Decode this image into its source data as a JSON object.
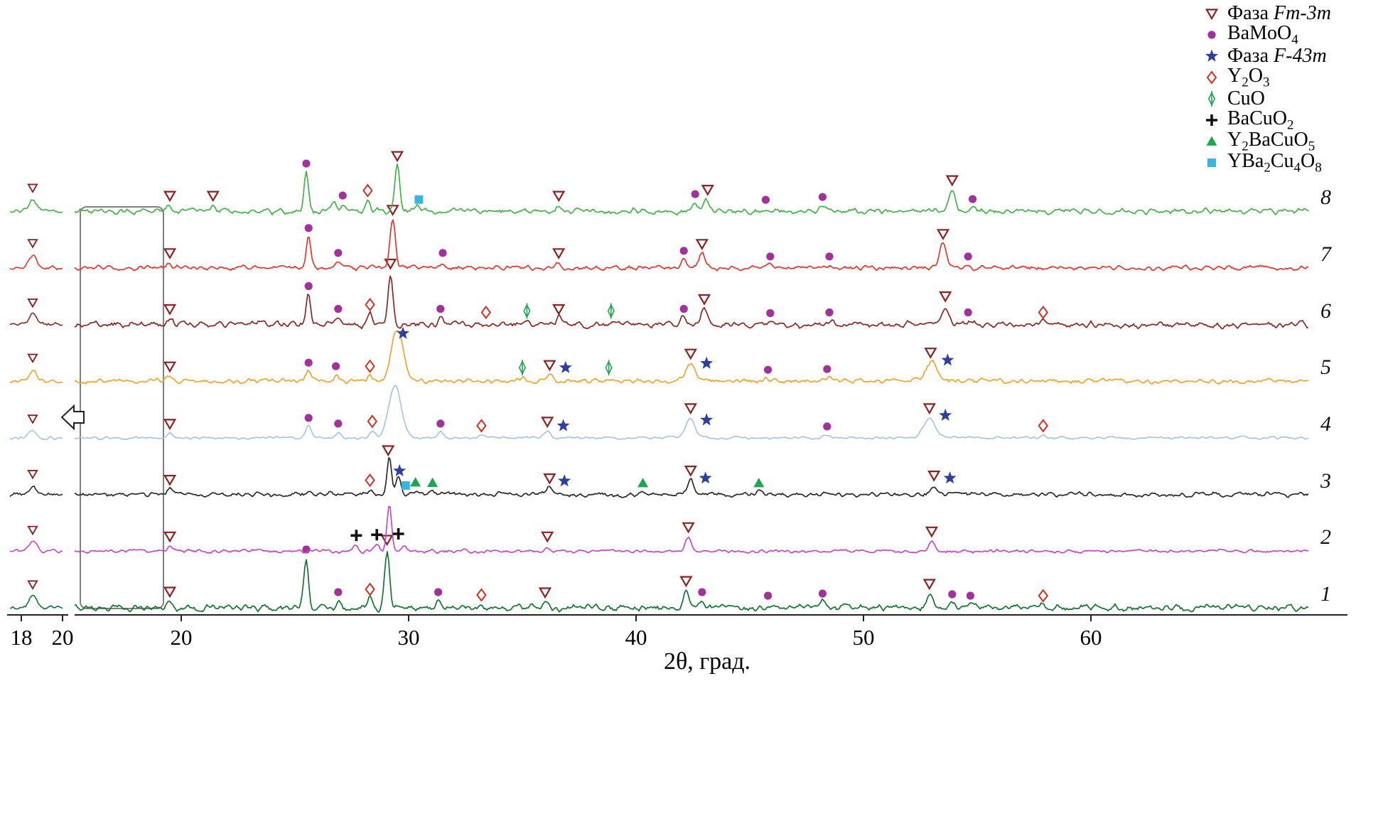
{
  "chart_data": {
    "type": "line",
    "xlabel": "2θ, град.",
    "x_ticks": [
      20,
      30,
      40,
      50,
      60
    ],
    "x_range_deg": [
      15.3,
      69.5
    ],
    "legend_position": "top-right",
    "inset": {
      "ticks": [
        "18",
        "20"
      ],
      "marker": "tri"
    },
    "legend": [
      {
        "icon": "fm3m-triangle-icon",
        "symbol": "tri",
        "label": "Фаза |Fm-3m|"
      },
      {
        "icon": "bamoo4-circle-icon",
        "symbol": "circ",
        "label": "BaMoO_4"
      },
      {
        "icon": "f43m-star-icon",
        "symbol": "star",
        "label": "Фаза |F-43m|"
      },
      {
        "icon": "y2o3-diamond-icon",
        "symbol": "dia",
        "label": "Y_2O_3"
      },
      {
        "icon": "cuo-diamond-icon",
        "symbol": "cuo",
        "label": "CuO"
      },
      {
        "icon": "bacuo2-plus-icon",
        "symbol": "plus",
        "label": "BaCuO_2"
      },
      {
        "icon": "y2bacuo5-triangle-icon",
        "symbol": "gtri",
        "label": "Y_2BaCuO_5"
      },
      {
        "icon": "yba2cu4o8-square-icon",
        "symbol": "sq",
        "label": "YBa_2Cu_4O_8"
      }
    ],
    "symbol_colors": {
      "tri": "#8b2121",
      "circ": "#a03399",
      "star": "#2e3f9f",
      "dia": "#d63023",
      "cuo": "#1ea552",
      "plus": "#111111",
      "gtri": "#1ea552",
      "sq": "#3ab5e0"
    },
    "curves": [
      {
        "label": "1",
        "color": "#15742f",
        "noise": 2.6,
        "inset_peak": 16,
        "peaks": [
          [
            19.5,
            9,
            0.1
          ],
          [
            25.5,
            70,
            0.1
          ],
          [
            26.9,
            10,
            0.1
          ],
          [
            28.3,
            13,
            0.1
          ],
          [
            29.05,
            82,
            0.11
          ],
          [
            31.3,
            10,
            0.1
          ],
          [
            33.2,
            5,
            0.1
          ],
          [
            36.0,
            8,
            0.12
          ],
          [
            42.2,
            24,
            0.12
          ],
          [
            42.9,
            10,
            0.1
          ],
          [
            45.8,
            5,
            0.1
          ],
          [
            48.2,
            8,
            0.12
          ],
          [
            52.9,
            20,
            0.13
          ],
          [
            53.9,
            7,
            0.1
          ],
          [
            54.7,
            5,
            0.1
          ],
          [
            57.9,
            4,
            0.1
          ]
        ],
        "markers": [
          [
            "tri",
            19.5
          ],
          [
            "circ",
            25.5
          ],
          [
            "circ",
            26.9
          ],
          [
            "dia",
            28.3
          ],
          [
            "tri",
            29.05
          ],
          [
            "circ",
            31.3
          ],
          [
            "dia",
            33.2
          ],
          [
            "tri",
            36.0
          ],
          [
            "tri",
            42.2
          ],
          [
            "circ",
            42.9
          ],
          [
            "circ",
            45.8
          ],
          [
            "circ",
            48.2
          ],
          [
            "tri",
            52.9
          ],
          [
            "circ",
            53.9
          ],
          [
            "circ",
            54.7
          ],
          [
            "dia",
            57.9
          ]
        ]
      },
      {
        "label": "2",
        "color": "#c24ac2",
        "noise": 1.4,
        "inset_peak": 13,
        "peaks": [
          [
            19.5,
            7,
            0.1
          ],
          [
            27.7,
            8,
            0.1
          ],
          [
            28.6,
            9,
            0.1
          ],
          [
            29.15,
            66,
            0.1
          ],
          [
            29.8,
            7,
            0.1
          ],
          [
            36.1,
            7,
            0.12
          ],
          [
            42.3,
            20,
            0.13
          ],
          [
            53.0,
            14,
            0.13
          ]
        ],
        "markers": [
          [
            "tri",
            19.5
          ],
          [
            "plus",
            27.7
          ],
          [
            "plus",
            28.6
          ],
          [
            "plus",
            29.55,
            10
          ],
          [
            "tri",
            36.1
          ],
          [
            "tri",
            42.3
          ],
          [
            "tri",
            53.0
          ]
        ]
      },
      {
        "label": "3",
        "color": "#2a2a2a",
        "noise": 1.9,
        "inset_peak": 12,
        "peaks": [
          [
            19.5,
            7,
            0.1
          ],
          [
            28.3,
            7,
            0.1
          ],
          [
            29.15,
            55,
            0.1
          ],
          [
            29.55,
            22,
            0.12
          ],
          [
            30.3,
            5,
            0.1
          ],
          [
            31.0,
            5,
            0.1
          ],
          [
            36.2,
            9,
            0.12
          ],
          [
            40.3,
            4,
            0.1
          ],
          [
            42.4,
            20,
            0.12
          ],
          [
            45.4,
            4,
            0.1
          ],
          [
            53.1,
            13,
            0.13
          ],
          [
            53.8,
            6,
            0.1
          ]
        ],
        "markers": [
          [
            "tri",
            19.5
          ],
          [
            "dia",
            28.3
          ],
          [
            "tri",
            29.1
          ],
          [
            "star",
            29.6
          ],
          [
            "sq",
            29.87
          ],
          [
            "gtri",
            30.3
          ],
          [
            "gtri",
            31.05
          ],
          [
            "tri",
            36.2
          ],
          [
            "star",
            36.85,
            6
          ],
          [
            "gtri",
            40.3
          ],
          [
            "tri",
            42.4
          ],
          [
            "star",
            43.05,
            10
          ],
          [
            "gtri",
            45.4
          ],
          [
            "tri",
            53.1
          ],
          [
            "star",
            53.8,
            4
          ]
        ]
      },
      {
        "label": "4",
        "color": "#abc4dd",
        "noise": 1.1,
        "inset_peak": 10,
        "peaks": [
          [
            19.5,
            6,
            0.1
          ],
          [
            25.6,
            16,
            0.12
          ],
          [
            26.9,
            8,
            0.1
          ],
          [
            28.4,
            10,
            0.12
          ],
          [
            29.4,
            73,
            0.28
          ],
          [
            31.4,
            8,
            0.12
          ],
          [
            33.2,
            4,
            0.1
          ],
          [
            36.1,
            9,
            0.14
          ],
          [
            42.4,
            28,
            0.2
          ],
          [
            48.4,
            4,
            0.12
          ],
          [
            52.9,
            28,
            0.25
          ],
          [
            57.9,
            4,
            0.12
          ]
        ],
        "markers": [
          [
            "tri",
            19.5
          ],
          [
            "circ",
            25.6
          ],
          [
            "circ",
            26.9
          ],
          [
            "dia",
            28.4
          ],
          [
            "circ",
            31.4
          ],
          [
            "dia",
            33.2
          ],
          [
            "tri",
            36.1
          ],
          [
            "star",
            36.8,
            4
          ],
          [
            "tri",
            42.4
          ],
          [
            "star",
            43.1,
            12
          ],
          [
            "circ",
            48.4
          ],
          [
            "tri",
            52.9
          ],
          [
            "star",
            53.6,
            18
          ],
          [
            "dia",
            57.9
          ]
        ]
      },
      {
        "label": "5",
        "color": "#f0a42e",
        "noise": 2.0,
        "inset_peak": 16,
        "peaks": [
          [
            19.5,
            7,
            0.1
          ],
          [
            25.6,
            14,
            0.12
          ],
          [
            26.8,
            9,
            0.1
          ],
          [
            28.3,
            8,
            0.12
          ],
          [
            29.5,
            71,
            0.27
          ],
          [
            35.0,
            4,
            0.1
          ],
          [
            36.2,
            9,
            0.13
          ],
          [
            38.8,
            4,
            0.1
          ],
          [
            42.4,
            25,
            0.2
          ],
          [
            45.8,
            4,
            0.1
          ],
          [
            48.4,
            5,
            0.12
          ],
          [
            53.0,
            27,
            0.25
          ]
        ],
        "markers": [
          [
            "tri",
            19.5
          ],
          [
            "circ",
            25.6
          ],
          [
            "circ",
            26.8
          ],
          [
            "dia",
            28.3
          ],
          [
            "star",
            29.75,
            8
          ],
          [
            "cuo",
            35.0
          ],
          [
            "tri",
            36.2
          ],
          [
            "star",
            36.9,
            6
          ],
          [
            "cuo",
            38.8
          ],
          [
            "tri",
            42.4
          ],
          [
            "star",
            43.1,
            12
          ],
          [
            "circ",
            45.8
          ],
          [
            "circ",
            48.4
          ],
          [
            "tri",
            52.95
          ],
          [
            "star",
            53.7,
            16
          ]
        ]
      },
      {
        "label": "6",
        "color": "#8c2723",
        "noise": 2.4,
        "inset_peak": 14,
        "peaks": [
          [
            19.5,
            8,
            0.1
          ],
          [
            25.6,
            42,
            0.1
          ],
          [
            26.9,
            10,
            0.1
          ],
          [
            28.3,
            15,
            0.11
          ],
          [
            29.2,
            72,
            0.11
          ],
          [
            31.4,
            10,
            0.1
          ],
          [
            33.4,
            4,
            0.1
          ],
          [
            35.2,
            4,
            0.1
          ],
          [
            36.6,
            8,
            0.12
          ],
          [
            38.9,
            4,
            0.1
          ],
          [
            42.1,
            10,
            0.12
          ],
          [
            43.0,
            22,
            0.13
          ],
          [
            45.9,
            4,
            0.1
          ],
          [
            48.5,
            5,
            0.12
          ],
          [
            53.6,
            26,
            0.14
          ],
          [
            54.6,
            5,
            0.1
          ],
          [
            57.9,
            4,
            0.12
          ]
        ],
        "markers": [
          [
            "tri",
            19.5
          ],
          [
            "circ",
            25.6
          ],
          [
            "circ",
            26.9
          ],
          [
            "dia",
            28.3
          ],
          [
            "tri",
            29.2
          ],
          [
            "circ",
            31.4
          ],
          [
            "dia",
            33.4
          ],
          [
            "cuo",
            35.2
          ],
          [
            "tri",
            36.6
          ],
          [
            "cuo",
            38.9
          ],
          [
            "circ",
            42.1
          ],
          [
            "tri",
            43.0
          ],
          [
            "circ",
            45.9
          ],
          [
            "circ",
            48.5
          ],
          [
            "tri",
            53.6
          ],
          [
            "circ",
            54.6
          ],
          [
            "dia",
            57.9
          ]
        ]
      },
      {
        "label": "7",
        "color": "#e6352b",
        "noise": 1.9,
        "inset_peak": 18,
        "peaks": [
          [
            19.5,
            7,
            0.1
          ],
          [
            25.6,
            44,
            0.1
          ],
          [
            26.9,
            9,
            0.1
          ],
          [
            29.3,
            68,
            0.12
          ],
          [
            31.5,
            9,
            0.1
          ],
          [
            36.6,
            7,
            0.12
          ],
          [
            42.1,
            12,
            0.12
          ],
          [
            42.9,
            20,
            0.13
          ],
          [
            45.9,
            4,
            0.1
          ],
          [
            48.5,
            4,
            0.12
          ],
          [
            53.5,
            34,
            0.14
          ],
          [
            54.6,
            4,
            0.1
          ]
        ],
        "markers": [
          [
            "tri",
            19.5
          ],
          [
            "circ",
            25.6
          ],
          [
            "circ",
            26.9
          ],
          [
            "tri",
            29.3
          ],
          [
            "circ",
            31.5
          ],
          [
            "tri",
            36.6
          ],
          [
            "circ",
            42.1
          ],
          [
            "tri",
            42.9
          ],
          [
            "circ",
            45.9
          ],
          [
            "circ",
            48.5
          ],
          [
            "tri",
            53.5
          ],
          [
            "circ",
            54.6
          ]
        ]
      },
      {
        "label": "8",
        "color": "#43b249",
        "noise": 2.3,
        "inset_peak": 16,
        "peaks": [
          [
            19.5,
            8,
            0.1
          ],
          [
            21.4,
            8,
            0.1
          ],
          [
            25.5,
            55,
            0.1
          ],
          [
            26.7,
            14,
            0.1
          ],
          [
            27.1,
            10,
            0.1
          ],
          [
            28.2,
            16,
            0.11
          ],
          [
            29.5,
            64,
            0.11
          ],
          [
            30.4,
            5,
            0.1
          ],
          [
            36.6,
            8,
            0.12
          ],
          [
            42.6,
            12,
            0.12
          ],
          [
            43.1,
            18,
            0.12
          ],
          [
            45.7,
            4,
            0.1
          ],
          [
            48.2,
            8,
            0.12
          ],
          [
            53.9,
            30,
            0.14
          ],
          [
            54.8,
            5,
            0.1
          ]
        ],
        "markers": [
          [
            "tri",
            19.5
          ],
          [
            "tri",
            21.4
          ],
          [
            "circ",
            25.5
          ],
          [
            "circ",
            27.1
          ],
          [
            "dia",
            28.2
          ],
          [
            "tri",
            29.5
          ],
          [
            "sq",
            30.45
          ],
          [
            "tri",
            36.6
          ],
          [
            "circ",
            42.6
          ],
          [
            "tri",
            43.15
          ],
          [
            "circ",
            45.7
          ],
          [
            "circ",
            48.2
          ],
          [
            "tri",
            53.9
          ],
          [
            "circ",
            54.8
          ]
        ]
      }
    ]
  }
}
